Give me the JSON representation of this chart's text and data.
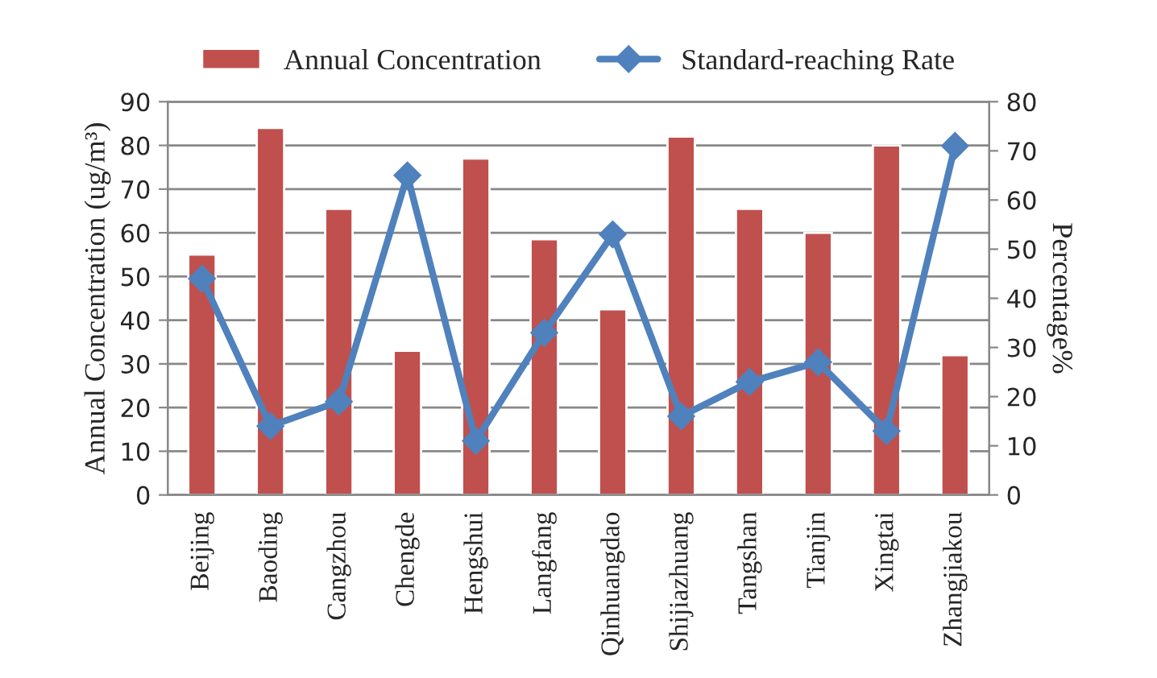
{
  "chart_data": {
    "type": "bar",
    "categories": [
      "Beijing",
      "Baoding",
      "Cangzhou",
      "Chengde",
      "Hengshui",
      "Langfang",
      "Qinhuangdao",
      "Shijiazhuang",
      "Tangshan",
      "Tianjin",
      "Xingtai",
      "Zhangjiakou"
    ],
    "series": [
      {
        "name": "Annual Concentration",
        "color": "#c0504d",
        "values": [
          55,
          84,
          65.5,
          33,
          77,
          58.5,
          42.5,
          82,
          65.5,
          60,
          80,
          32
        ]
      },
      {
        "name": "Standard-reaching Rate",
        "type": "line",
        "axis": "y2",
        "color": "#4f81bd",
        "marker": "diamond",
        "values": [
          44,
          14,
          19,
          65,
          11,
          33,
          53,
          16,
          23,
          27,
          13,
          71
        ]
      }
    ],
    "ylabel": "Annual Concentration (ug/m³)",
    "y2label": "Percentage%",
    "ylim": [
      0,
      90
    ],
    "yticks": [
      0,
      10,
      20,
      30,
      40,
      50,
      60,
      70,
      80,
      90
    ],
    "y2lim": [
      0,
      80
    ],
    "y2ticks": [
      0,
      10,
      20,
      30,
      40,
      50,
      60,
      70,
      80
    ],
    "grid": "y",
    "legend": "top"
  }
}
